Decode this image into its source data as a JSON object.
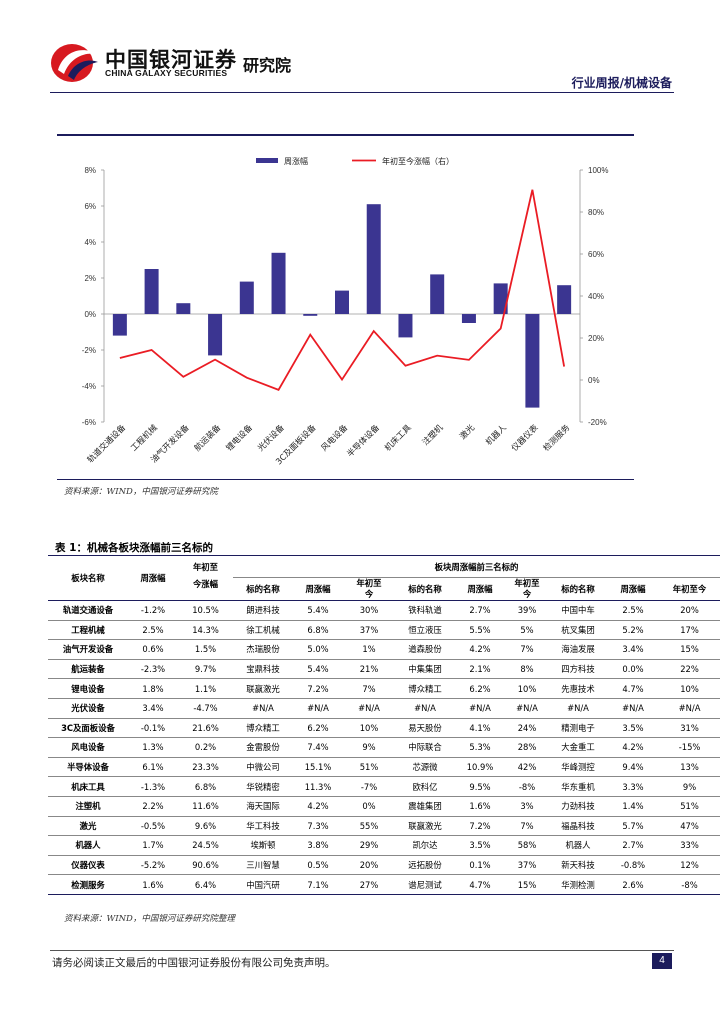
{
  "header": {
    "company_cn": "中国银河证券",
    "company_en": "CHINA GALAXY SECURITIES",
    "institute": "研究院",
    "report_type": "行业周报/机械设备"
  },
  "colors": {
    "bar": "#3b3591",
    "line": "#ea1c24",
    "navy": "#1c1c5c"
  },
  "chart_data": {
    "type": "bar",
    "categories": [
      "轨道交通设备",
      "工程机械",
      "油气开发设备",
      "航运装备",
      "锂电设备",
      "光伏设备",
      "3C及面板设备",
      "风电设备",
      "半导体设备",
      "机床工具",
      "注塑机",
      "激光",
      "机器人",
      "仪器仪表",
      "检测服务"
    ],
    "series": [
      {
        "name": "周涨幅",
        "type": "bar",
        "axis": "left",
        "values": [
          -1.2,
          2.5,
          0.6,
          -2.3,
          1.8,
          3.4,
          -0.1,
          1.3,
          6.1,
          -1.3,
          2.2,
          -0.5,
          1.7,
          -5.2,
          1.6
        ]
      },
      {
        "name": "年初至今涨幅（右）",
        "type": "line",
        "axis": "right",
        "values": [
          10.5,
          14.3,
          1.5,
          9.7,
          1.1,
          -4.7,
          21.6,
          0.2,
          23.3,
          6.8,
          11.6,
          9.6,
          24.5,
          90.6,
          6.4
        ]
      }
    ],
    "y_left": {
      "min": -6,
      "max": 8,
      "ticks": [
        "-6%",
        "-4%",
        "-2%",
        "0%",
        "2%",
        "4%",
        "6%",
        "8%"
      ]
    },
    "y_right": {
      "min": -20,
      "max": 100,
      "ticks": [
        "-20%",
        "0%",
        "20%",
        "40%",
        "60%",
        "80%",
        "100%"
      ]
    },
    "legend": "top-center"
  },
  "chart_source": "资料来源：WIND，中国银河证券研究院",
  "table": {
    "title": "表 1：机械各板块涨幅前三名标的",
    "group_header": "板块周涨幅前三名标的",
    "col_sector": "板块名称",
    "col_week": "周涨幅",
    "col_ytd_top": "年初至",
    "col_ytd_bottom": "今涨幅",
    "col_stock": "标的名称",
    "col_ytd2_top": "年初至",
    "col_ytd2_bottom": "今",
    "col_ytd3": "年初至今",
    "rows": [
      [
        "轨道交通设备",
        "-1.2%",
        "10.5%",
        "朗进科技",
        "5.4%",
        "30%",
        "铁科轨道",
        "2.7%",
        "39%",
        "中国中车",
        "2.5%",
        "20%"
      ],
      [
        "工程机械",
        "2.5%",
        "14.3%",
        "徐工机械",
        "6.8%",
        "37%",
        "恒立液压",
        "5.5%",
        "5%",
        "杭叉集团",
        "5.2%",
        "17%"
      ],
      [
        "油气开发设备",
        "0.6%",
        "1.5%",
        "杰瑞股份",
        "5.0%",
        "1%",
        "道森股份",
        "4.2%",
        "7%",
        "海油发展",
        "3.4%",
        "15%"
      ],
      [
        "航运装备",
        "-2.3%",
        "9.7%",
        "宝鼎科技",
        "5.4%",
        "21%",
        "中集集团",
        "2.1%",
        "8%",
        "四方科技",
        "0.0%",
        "22%"
      ],
      [
        "锂电设备",
        "1.8%",
        "1.1%",
        "联赢激光",
        "7.2%",
        "7%",
        "博众精工",
        "6.2%",
        "10%",
        "先惠技术",
        "4.7%",
        "10%"
      ],
      [
        "光伏设备",
        "3.4%",
        "-4.7%",
        "#N/A",
        "#N/A",
        "#N/A",
        "#N/A",
        "#N/A",
        "#N/A",
        "#N/A",
        "#N/A",
        "#N/A"
      ],
      [
        "3C及面板设备",
        "-0.1%",
        "21.6%",
        "博众精工",
        "6.2%",
        "10%",
        "易天股份",
        "4.1%",
        "24%",
        "精测电子",
        "3.5%",
        "31%"
      ],
      [
        "风电设备",
        "1.3%",
        "0.2%",
        "金雷股份",
        "7.4%",
        "9%",
        "中际联合",
        "5.3%",
        "28%",
        "大金重工",
        "4.2%",
        "-15%"
      ],
      [
        "半导体设备",
        "6.1%",
        "23.3%",
        "中微公司",
        "15.1%",
        "51%",
        "芯源微",
        "10.9%",
        "42%",
        "华峰测控",
        "9.4%",
        "13%"
      ],
      [
        "机床工具",
        "-1.3%",
        "6.8%",
        "华锐精密",
        "11.3%",
        "-7%",
        "欧科亿",
        "9.5%",
        "-8%",
        "华东重机",
        "3.3%",
        "9%"
      ],
      [
        "注塑机",
        "2.2%",
        "11.6%",
        "海天国际",
        "4.2%",
        "0%",
        "震雄集团",
        "1.6%",
        "3%",
        "力劲科技",
        "1.4%",
        "51%"
      ],
      [
        "激光",
        "-0.5%",
        "9.6%",
        "华工科技",
        "7.3%",
        "55%",
        "联赢激光",
        "7.2%",
        "7%",
        "福晶科技",
        "5.7%",
        "47%"
      ],
      [
        "机器人",
        "1.7%",
        "24.5%",
        "埃斯顿",
        "3.8%",
        "29%",
        "凯尔达",
        "3.5%",
        "58%",
        "机器人",
        "2.7%",
        "33%"
      ],
      [
        "仪器仪表",
        "-5.2%",
        "90.6%",
        "三川智慧",
        "0.5%",
        "20%",
        "远拓股份",
        "0.1%",
        "37%",
        "新天科技",
        "-0.8%",
        "12%"
      ],
      [
        "检测服务",
        "1.6%",
        "6.4%",
        "中国汽研",
        "7.1%",
        "27%",
        "谱尼测试",
        "4.7%",
        "15%",
        "华测检测",
        "2.6%",
        "-8%"
      ]
    ],
    "source": "资料来源：WIND，中国银河证券研究院整理"
  },
  "footer": {
    "disclaimer": "请务必阅读正文最后的中国银河证券股份有限公司免责声明。",
    "page": "4"
  }
}
